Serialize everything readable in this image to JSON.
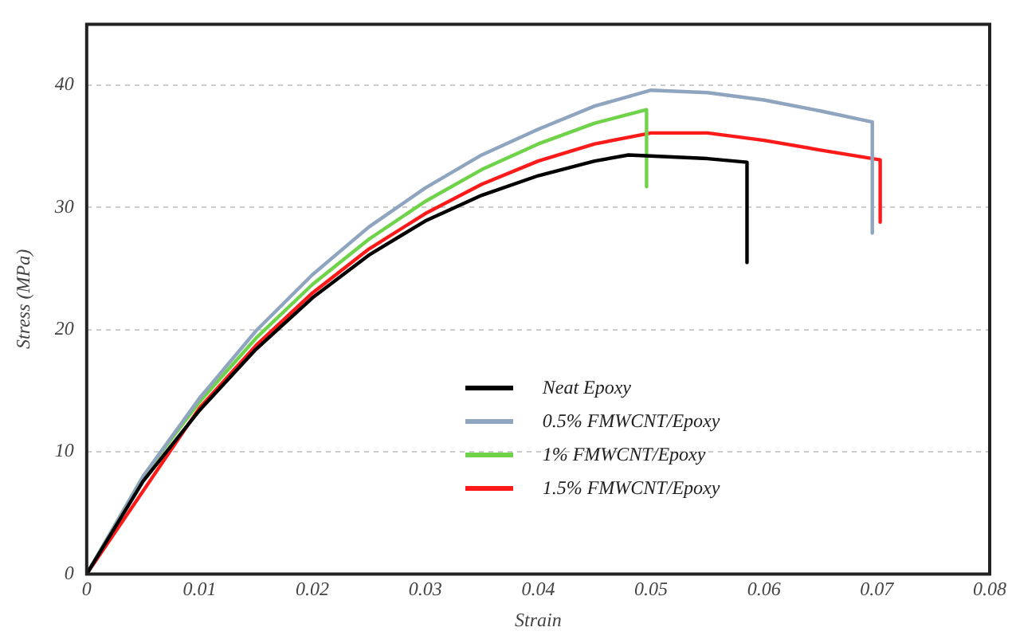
{
  "chart_data": {
    "type": "line",
    "xlabel": "Strain",
    "ylabel": "Stress (MPa)",
    "xlim": [
      0,
      0.08
    ],
    "xticks": [
      0,
      0.01,
      0.02,
      0.03,
      0.04,
      0.05,
      0.06,
      0.07,
      0.08
    ],
    "ylim": [
      0,
      45
    ],
    "yticks": [
      0,
      10,
      20,
      30,
      40
    ],
    "grid": "y",
    "legend": "center",
    "marker": "none",
    "line_style": "solid",
    "series": [
      {
        "name": "Neat Epoxy",
        "color": "#000000",
        "x": [
          0,
          0.005,
          0.01,
          0.015,
          0.02,
          0.025,
          0.03,
          0.035,
          0.04,
          0.045,
          0.048,
          0.055,
          0.0585,
          0.0585
        ],
        "values": [
          0,
          7.6,
          13.4,
          18.4,
          22.6,
          26.1,
          28.9,
          31.0,
          32.6,
          33.8,
          34.3,
          34.0,
          33.7,
          25.5
        ]
      },
      {
        "name": "0.5% FMWCNT/Epoxy",
        "color": "#8ea4bf",
        "x": [
          0,
          0.005,
          0.01,
          0.015,
          0.02,
          0.025,
          0.03,
          0.035,
          0.04,
          0.045,
          0.05,
          0.055,
          0.06,
          0.065,
          0.0696,
          0.0696
        ],
        "values": [
          0,
          8,
          14.4,
          19.9,
          24.5,
          28.4,
          31.6,
          34.3,
          36.4,
          38.3,
          39.6,
          39.4,
          38.8,
          37.9,
          37.0,
          27.9
        ]
      },
      {
        "name": "1% FMWCNT/Epoxy",
        "color": "#6fd34a",
        "x": [
          0,
          0.005,
          0.01,
          0.015,
          0.02,
          0.025,
          0.03,
          0.035,
          0.04,
          0.045,
          0.0496,
          0.0496
        ],
        "values": [
          0,
          8,
          14.1,
          19.3,
          23.7,
          27.4,
          30.5,
          33.1,
          35.2,
          36.9,
          38.0,
          31.7
        ]
      },
      {
        "name": "1.5% FMWCNT/Epoxy",
        "color": "#ff1a1a",
        "x": [
          0,
          0.01,
          0.015,
          0.02,
          0.025,
          0.03,
          0.035,
          0.04,
          0.045,
          0.05,
          0.055,
          0.06,
          0.065,
          0.0703,
          0.0703
        ],
        "values": [
          0,
          13.6,
          18.7,
          23.0,
          26.6,
          29.5,
          31.9,
          33.8,
          35.2,
          36.1,
          36.1,
          35.5,
          34.7,
          33.9,
          28.8
        ]
      }
    ]
  }
}
